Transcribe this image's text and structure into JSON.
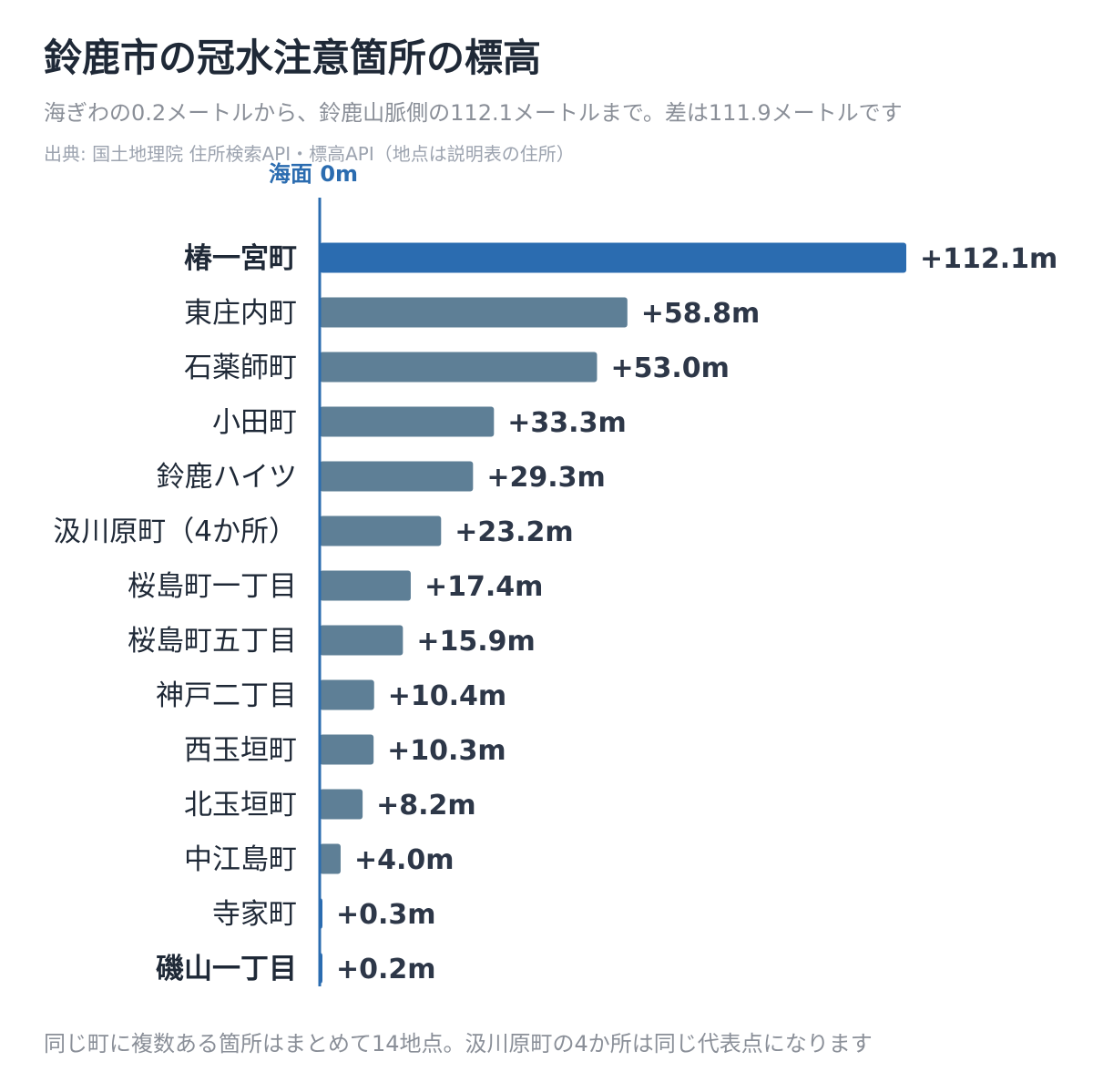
{
  "title": "鈴鹿市の冠水注意箇所の標高",
  "subtitle": "海ぎわの0.2メートルから、鈴鹿山脈側の112.1メートルまで。差は111.9メートルです",
  "source": "出典: 国土地理院 住所検索API・標高API（地点は説明表の住所）",
  "footnote": "同じ町に複数ある箇所はまとめて14地点。汲川原町の4か所は同じ代表点になります",
  "colors": {
    "highlight": "#2b6cb0",
    "bar": "#5e7f96",
    "axis": "#2b6cb0",
    "label": "#1f2937",
    "value": "#2d3748"
  },
  "chart_data": {
    "type": "bar",
    "orientation": "horizontal",
    "axis_label": "海面 0m",
    "unit": "m",
    "categories": [
      "椿一宮町",
      "東庄内町",
      "石薬師町",
      "小田町",
      "鈴鹿ハイツ",
      "汲川原町（4か所）",
      "桜島町一丁目",
      "桜島町五丁目",
      "神戸二丁目",
      "西玉垣町",
      "北玉垣町",
      "中江島町",
      "寺家町",
      "磯山一丁目"
    ],
    "values": [
      112.1,
      58.8,
      53.0,
      33.3,
      29.3,
      23.2,
      17.4,
      15.9,
      10.4,
      10.3,
      8.2,
      4.0,
      0.3,
      0.2
    ],
    "value_labels": [
      "+112.1m",
      "+58.8m",
      "+53.0m",
      "+33.3m",
      "+29.3m",
      "+23.2m",
      "+17.4m",
      "+15.9m",
      "+10.4m",
      "+10.3m",
      "+8.2m",
      "+4.0m",
      "+0.3m",
      "+0.2m"
    ],
    "highlighted": [
      "椿一宮町",
      "磯山一丁目"
    ],
    "highlight_bar": "椿一宮町"
  }
}
